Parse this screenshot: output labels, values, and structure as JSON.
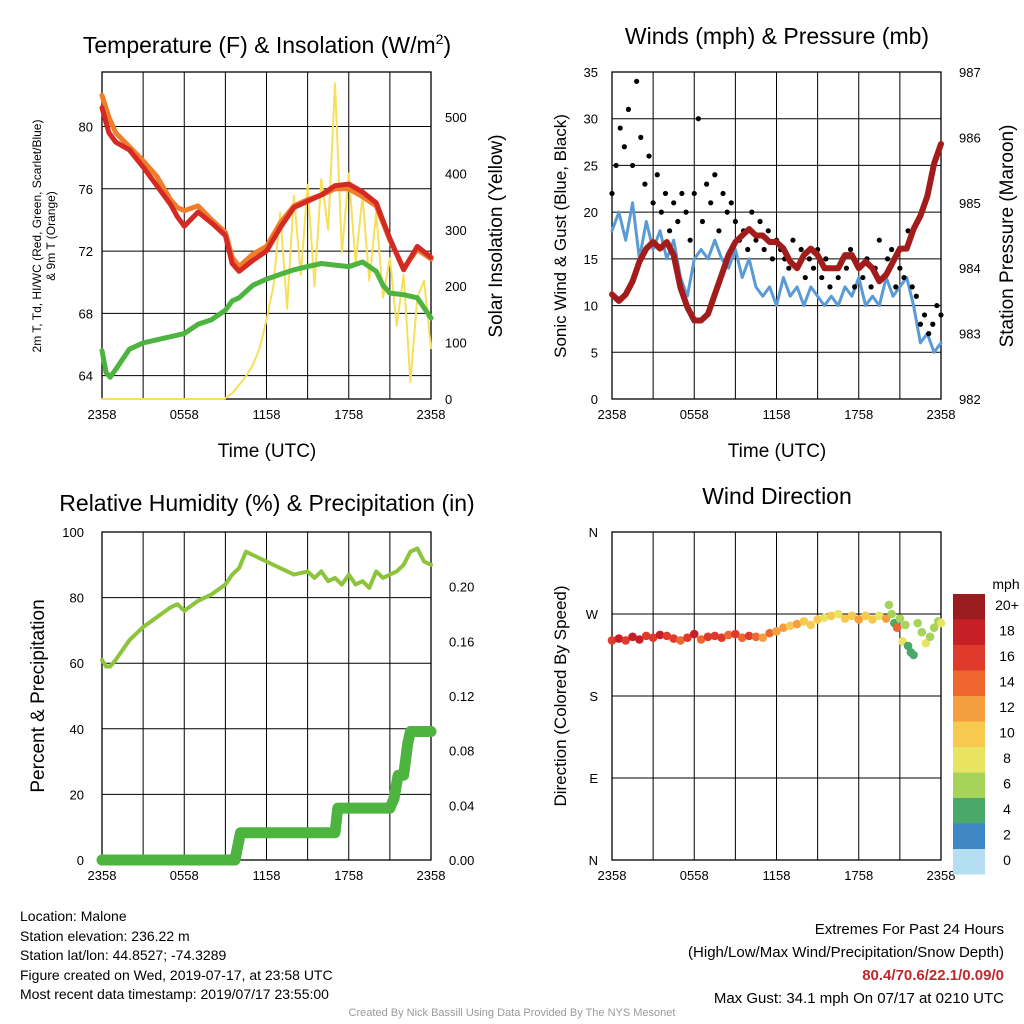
{
  "colors": {
    "red": "#d42a23",
    "orange": "#f07d2a",
    "green": "#4cb43f",
    "yellow": "#f6e05a",
    "blue": "#5b9bd5",
    "black": "#000000",
    "maroon": "#a31c1c",
    "rh": "#8cc43c",
    "precip": "#4cb43f"
  },
  "chart_data": [
    {
      "type": "line",
      "title": "Temperature (F) & Insolation (W/m²)",
      "title_main": "Temperature (F) & Insolation (W/m",
      "title_sup": "2",
      "title_end": ")",
      "xlabel": "Time (UTC)",
      "ylabel_line1": "2m T, Td, HI/WC (Red, Green, Scarlet/Blue)",
      "ylabel_line2": "& 9m T (Orange)",
      "ylabel_right": "Solar Insolation (Yellow)",
      "x_ticks": [
        "2358",
        "0558",
        "1158",
        "1758",
        "2358"
      ],
      "x_range_hours": [
        0,
        24
      ],
      "ylim_left": [
        62.5,
        83.5
      ],
      "yticks_left": [
        64,
        68,
        72,
        76,
        80
      ],
      "ylim_right": [
        0,
        580
      ],
      "yticks_right": [
        0,
        100,
        200,
        300,
        400,
        500
      ],
      "series": [
        {
          "name": "2m T",
          "color_key": "red",
          "axis": "left",
          "x": [
            0,
            0.5,
            1,
            2,
            3,
            4,
            5,
            5.5,
            6,
            7,
            8,
            9,
            9.5,
            10,
            11,
            12,
            13,
            14,
            15,
            16,
            17,
            18,
            19,
            20,
            21,
            22,
            23,
            24
          ],
          "y": [
            81.2,
            79.6,
            79.0,
            78.5,
            77.4,
            76.2,
            75.0,
            74.2,
            73.6,
            74.5,
            73.8,
            73.0,
            71.2,
            70.7,
            71.4,
            72.0,
            73.5,
            74.8,
            75.2,
            75.6,
            76.2,
            76.3,
            75.8,
            75.1,
            72.8,
            70.8,
            72.3,
            71.6
          ]
        },
        {
          "name": "9m T",
          "color_key": "orange",
          "axis": "left",
          "x": [
            0,
            0.5,
            1,
            2,
            3,
            4,
            5,
            5.5,
            6,
            7,
            8,
            9,
            9.5,
            10,
            11,
            12,
            13,
            14,
            15,
            16,
            17,
            18,
            19,
            20,
            21,
            22,
            23,
            24
          ],
          "y": [
            82.0,
            80.6,
            79.6,
            78.7,
            77.8,
            76.8,
            75.3,
            74.8,
            74.6,
            74.9,
            74.0,
            73.2,
            71.6,
            71.0,
            71.8,
            72.3,
            73.8,
            74.9,
            75.3,
            75.6,
            76.0,
            76.0,
            75.5,
            74.9,
            72.7,
            70.9,
            72.1,
            71.5
          ]
        },
        {
          "name": "2m Td",
          "color_key": "green",
          "axis": "left",
          "x": [
            0,
            0.3,
            0.6,
            1,
            2,
            3,
            4,
            5,
            6,
            7,
            8,
            9,
            9.5,
            10,
            11,
            12,
            13,
            14,
            15,
            16,
            17,
            18,
            19,
            20,
            20.5,
            21,
            22,
            23,
            24
          ],
          "y": [
            65.6,
            64.2,
            63.9,
            64.4,
            65.7,
            66.1,
            66.3,
            66.5,
            66.7,
            67.3,
            67.6,
            68.2,
            68.8,
            69.0,
            69.8,
            70.2,
            70.5,
            70.8,
            71.0,
            71.2,
            71.1,
            71.0,
            71.3,
            70.7,
            69.8,
            69.3,
            69.2,
            69.0,
            67.7
          ]
        },
        {
          "name": "Solar Insolation",
          "color_key": "yellow",
          "axis": "right",
          "x": [
            0,
            8.9,
            9.5,
            10.0,
            10.5,
            11.0,
            11.5,
            12.0,
            12.5,
            13.0,
            13.5,
            14.0,
            14.5,
            15.0,
            15.5,
            16.0,
            16.5,
            17.0,
            17.5,
            18.0,
            18.5,
            19.0,
            19.5,
            20.0,
            20.5,
            21.0,
            21.5,
            22.0,
            22.5,
            23.0,
            23.5,
            24.0
          ],
          "y": [
            0,
            0,
            10,
            25,
            40,
            60,
            90,
            140,
            200,
            330,
            160,
            360,
            220,
            380,
            200,
            390,
            300,
            560,
            260,
            400,
            240,
            360,
            210,
            330,
            180,
            250,
            130,
            220,
            30,
            180,
            210,
            90
          ]
        }
      ]
    },
    {
      "type": "line",
      "title": "Winds (mph) & Pressure (mb)",
      "xlabel": "Time (UTC)",
      "ylabel": "Sonic Wind & Gust (Blue, Black)",
      "ylabel_right": "Station Pressure (Maroon)",
      "x_ticks": [
        "2358",
        "0558",
        "1158",
        "1758",
        "2358"
      ],
      "x_range_hours": [
        0,
        24
      ],
      "ylim_left": [
        0,
        35
      ],
      "yticks_left": [
        0,
        5,
        10,
        15,
        20,
        25,
        30,
        35
      ],
      "ylim_right": [
        982,
        987
      ],
      "yticks_right": [
        982,
        983,
        984,
        985,
        986,
        987
      ],
      "series": [
        {
          "name": "Sonic Wind",
          "color_key": "blue",
          "axis": "left",
          "x": [
            0,
            0.5,
            1,
            1.5,
            2,
            2.5,
            3,
            3.5,
            4,
            4.5,
            5,
            5.5,
            6,
            6.5,
            7,
            7.5,
            8,
            8.5,
            9,
            9.5,
            10,
            10.5,
            11,
            11.5,
            12,
            12.5,
            13,
            13.5,
            14,
            14.5,
            15,
            15.5,
            16,
            16.5,
            17,
            17.5,
            18,
            18.5,
            19,
            19.5,
            20,
            20.5,
            21,
            21.5,
            22,
            22.5,
            23,
            23.5,
            24
          ],
          "y": [
            18,
            20,
            17,
            21,
            15,
            19,
            16,
            18,
            15,
            17,
            13,
            11,
            15,
            16,
            15,
            17,
            15,
            14,
            16,
            13,
            15,
            12,
            11,
            12,
            10,
            13,
            11,
            12,
            10,
            12,
            11,
            10,
            11,
            10,
            12,
            11,
            13,
            10,
            11,
            10,
            13,
            11,
            12,
            13,
            10,
            6,
            7,
            5,
            6
          ]
        },
        {
          "name": "Gust",
          "color_key": "black",
          "axis": "left",
          "marker": "dot",
          "x": [
            0,
            0.3,
            0.6,
            0.9,
            1.2,
            1.5,
            1.8,
            2.1,
            2.4,
            2.7,
            3,
            3.3,
            3.6,
            3.9,
            4.2,
            4.5,
            4.8,
            5.1,
            5.4,
            5.7,
            6,
            6.3,
            6.6,
            6.9,
            7.2,
            7.5,
            7.8,
            8.1,
            8.4,
            8.7,
            9,
            9.3,
            9.6,
            9.9,
            10.2,
            10.5,
            10.8,
            11.1,
            11.4,
            11.7,
            12,
            12.3,
            12.6,
            12.9,
            13.2,
            13.5,
            13.8,
            14.1,
            14.4,
            14.7,
            15,
            15.3,
            15.6,
            15.9,
            16.2,
            16.5,
            16.8,
            17.1,
            17.4,
            17.7,
            18,
            18.3,
            18.6,
            18.9,
            19.2,
            19.5,
            19.8,
            20.1,
            20.4,
            20.7,
            21,
            21.3,
            21.6,
            21.9,
            22.2,
            22.5,
            22.8,
            23.1,
            23.4,
            23.7,
            24
          ],
          "y": [
            22,
            25,
            29,
            27,
            31,
            25,
            34,
            28,
            23,
            26,
            21,
            24,
            20,
            22,
            18,
            21,
            19,
            22,
            20,
            17,
            22,
            30,
            19,
            23,
            21,
            24,
            18,
            22,
            20,
            21,
            19,
            17,
            18,
            16,
            20,
            17,
            19,
            16,
            18,
            15,
            17,
            16,
            15,
            14,
            17,
            14,
            16,
            13,
            15,
            14,
            16,
            13,
            15,
            12,
            14,
            13,
            15,
            14,
            16,
            12,
            14,
            13,
            15,
            12,
            14,
            17,
            13,
            15,
            16,
            12,
            14,
            13,
            18,
            12,
            11,
            8,
            9,
            7,
            8,
            10,
            9
          ]
        },
        {
          "name": "Station Pressure",
          "color_key": "maroon",
          "axis": "right",
          "x": [
            0,
            0.5,
            1,
            1.5,
            2,
            2.5,
            3,
            3.5,
            4,
            4.5,
            5,
            5.5,
            6,
            6.5,
            7,
            7.5,
            8,
            8.5,
            9,
            9.5,
            10,
            10.5,
            11,
            11.5,
            12,
            12.5,
            13,
            13.5,
            14,
            14.5,
            15,
            15.5,
            16,
            16.5,
            17,
            17.5,
            18,
            18.5,
            19,
            19.5,
            20,
            20.5,
            21,
            21.5,
            22,
            22.5,
            23,
            23.5,
            24
          ],
          "y": [
            983.6,
            983.5,
            983.6,
            983.8,
            984.1,
            984.3,
            984.4,
            984.3,
            984.4,
            984.2,
            983.7,
            983.4,
            983.2,
            983.2,
            983.3,
            983.6,
            983.9,
            984.2,
            984.4,
            984.5,
            984.6,
            984.5,
            984.5,
            984.4,
            984.4,
            984.3,
            984.1,
            984.0,
            984.2,
            984.3,
            984.2,
            984.0,
            984.0,
            984.0,
            984.2,
            984.2,
            984.0,
            984.1,
            984.0,
            983.8,
            983.9,
            984.1,
            984.3,
            984.3,
            984.6,
            984.8,
            985.1,
            985.6,
            985.9
          ]
        }
      ]
    },
    {
      "type": "line",
      "title": "Relative Humidity (%) & Precipitation (in)",
      "ylabel": "Percent & Precipitation",
      "x_ticks": [
        "2358",
        "0558",
        "1158",
        "1758",
        "2358"
      ],
      "x_range_hours": [
        0,
        24
      ],
      "ylim_left": [
        0,
        100
      ],
      "yticks_left": [
        0,
        20,
        40,
        60,
        80,
        100
      ],
      "ylim_right": [
        0,
        0.24
      ],
      "yticks_right_labels": [
        "0.00",
        "0.04",
        "0.08",
        "0.12",
        "0.16",
        "0.20"
      ],
      "series": [
        {
          "name": "Relative Humidity",
          "color_key": "rh",
          "axis": "left",
          "x": [
            0,
            0.3,
            0.6,
            1,
            2,
            3,
            4,
            5,
            5.5,
            6,
            7,
            8,
            9,
            9.5,
            10,
            10.5,
            11,
            12,
            13,
            14,
            15,
            15.5,
            16,
            16.5,
            17,
            17.5,
            18,
            18.5,
            19,
            19.5,
            20,
            20.5,
            21,
            21.5,
            22,
            22.5,
            23,
            23.5,
            24
          ],
          "y": [
            61,
            59,
            59,
            61,
            67,
            71,
            74,
            77,
            78,
            76,
            79,
            81,
            84,
            87,
            89,
            94,
            93,
            91,
            89,
            87,
            88,
            86,
            88,
            85,
            86,
            84,
            87,
            84,
            85,
            83,
            88,
            86,
            87,
            88,
            90,
            94,
            95,
            91,
            90
          ]
        },
        {
          "name": "Precipitation",
          "color_key": "precip",
          "axis": "right",
          "x": [
            0,
            9.7,
            9.9,
            10.1,
            10.3,
            17.0,
            17.2,
            21.0,
            21.3,
            21.6,
            22.0,
            22.3,
            22.5,
            24
          ],
          "y": [
            0,
            0,
            0.01,
            0.02,
            0.02,
            0.02,
            0.038,
            0.038,
            0.045,
            0.062,
            0.062,
            0.085,
            0.094,
            0.094
          ]
        }
      ]
    },
    {
      "type": "scatter",
      "title": "Wind Direction",
      "ylabel": "Direction (Colored By Speed)",
      "x_ticks": [
        "2358",
        "0558",
        "1158",
        "1758",
        "2358"
      ],
      "x_range_hours": [
        0,
        24
      ],
      "y_tick_labels": [
        "N",
        "E",
        "S",
        "W",
        "N"
      ],
      "ylim_degrees": [
        0,
        360
      ],
      "legend_title": "mph",
      "legend_labels": [
        "20+",
        "18",
        "16",
        "14",
        "12",
        "10",
        "8",
        "6",
        "4",
        "2",
        "0"
      ],
      "legend_colors": [
        "#9c1b1f",
        "#c62026",
        "#e03a2c",
        "#f0662f",
        "#f59e40",
        "#f7c94f",
        "#e8e461",
        "#a6d35a",
        "#4aa86a",
        "#3f86c4",
        "#b6def3"
      ],
      "points": {
        "x": [
          0,
          0.5,
          1,
          1.5,
          2,
          2.5,
          3,
          3.5,
          4,
          4.5,
          5,
          5.5,
          6,
          6.5,
          7,
          7.5,
          8,
          8.5,
          9,
          9.5,
          10,
          10.5,
          11,
          11.5,
          12,
          12.5,
          13,
          13.5,
          14,
          14.5,
          15,
          15.5,
          16,
          16.5,
          17,
          17.5,
          18,
          18.5,
          19,
          19.5,
          20,
          20.2,
          20.4,
          20.6,
          20.8,
          21,
          21.2,
          21.4,
          21.6,
          21.8,
          22,
          22.3,
          22.6,
          22.9,
          23.2,
          23.5,
          23.8,
          24
        ],
        "y_deg": [
          241,
          243,
          241,
          245,
          242,
          246,
          244,
          247,
          246,
          243,
          241,
          244,
          248,
          242,
          245,
          246,
          244,
          247,
          248,
          244,
          246,
          245,
          244,
          249,
          251,
          255,
          257,
          259,
          262,
          258,
          264,
          266,
          268,
          270,
          265,
          268,
          264,
          268,
          264,
          268,
          265,
          280,
          270,
          260,
          255,
          265,
          240,
          258,
          235,
          228,
          225,
          260,
          250,
          238,
          245,
          255,
          262,
          260
        ],
        "speed": [
          16,
          17,
          16,
          18,
          17,
          15,
          16,
          17,
          16,
          15,
          14,
          15,
          17,
          14,
          15,
          16,
          15,
          14,
          15,
          14,
          15,
          13,
          12,
          13,
          11,
          12,
          10,
          11,
          9,
          10,
          9,
          8,
          9,
          8,
          10,
          9,
          11,
          9,
          10,
          8,
          11,
          5,
          6,
          4,
          13,
          5,
          7,
          5,
          4,
          3,
          4,
          6,
          5,
          7,
          5,
          6,
          6,
          7
        ]
      }
    }
  ],
  "info_left": {
    "location": "Location: Malone",
    "elevation": "Station elevation: 236.22 m",
    "latlon": "Station lat/lon: 44.8527; -74.3289",
    "created": "Figure created on Wed, 2019-07-17, at 23:58 UTC",
    "recent": "Most recent data timestamp: 2019/07/17 23:55:00"
  },
  "info_right": {
    "extremes_title": "Extremes For Past 24 Hours",
    "extremes_legend": "(High/Low/Max Wind/Precipitation/Snow Depth)",
    "extremes_values": "80.4/70.6/22.1/0.09/0",
    "max_gust": "Max Gust: 34.1 mph On 07/17 at 0210 UTC"
  },
  "credit": "Created By Nick Bassill Using Data Provided By The NYS Mesonet"
}
